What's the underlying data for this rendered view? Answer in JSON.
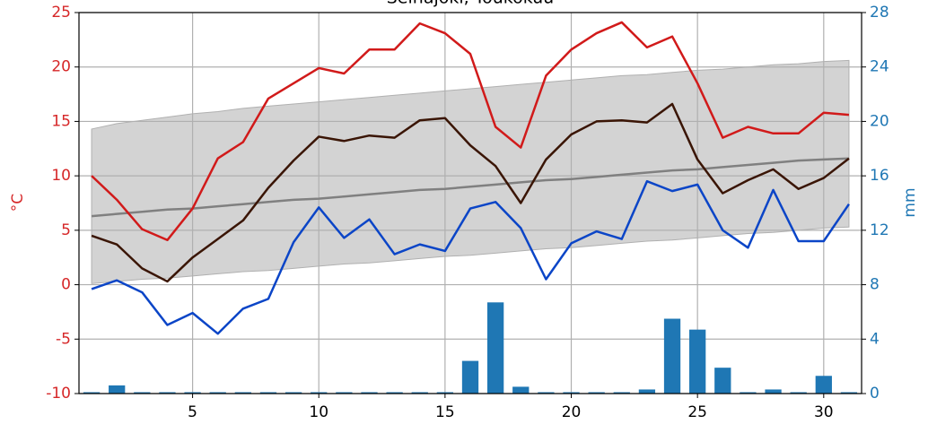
{
  "chart_data": {
    "type": "line",
    "title": "Seinäjoki, Toukokuu",
    "ylabel": "°C",
    "y2label": "mm",
    "x": [
      1,
      2,
      3,
      4,
      5,
      6,
      7,
      8,
      9,
      10,
      11,
      12,
      13,
      14,
      15,
      16,
      17,
      18,
      19,
      20,
      21,
      22,
      23,
      24,
      25,
      26,
      27,
      28,
      29,
      30,
      31
    ],
    "xlim": [
      0.5,
      31.5
    ],
    "xticks": [
      5,
      10,
      15,
      20,
      25,
      30
    ],
    "ylim": [
      -10,
      25
    ],
    "yticks": [
      -10,
      -5,
      0,
      5,
      10,
      15,
      20,
      25
    ],
    "y2lim": [
      0,
      28
    ],
    "y2ticks": [
      0,
      4,
      8,
      12,
      16,
      20,
      24,
      28
    ],
    "grid": true,
    "band": {
      "color": "#d3d3d3",
      "lower": [
        0.1,
        0.3,
        0.5,
        0.6,
        0.8,
        1.0,
        1.2,
        1.3,
        1.5,
        1.7,
        1.9,
        2.0,
        2.2,
        2.4,
        2.6,
        2.7,
        2.9,
        3.1,
        3.3,
        3.4,
        3.6,
        3.8,
        4.0,
        4.1,
        4.3,
        4.5,
        4.7,
        4.8,
        5.0,
        5.2,
        5.3
      ],
      "upper": [
        14.3,
        14.8,
        15.1,
        15.4,
        15.7,
        15.9,
        16.2,
        16.4,
        16.6,
        16.8,
        17.0,
        17.2,
        17.4,
        17.6,
        17.8,
        18.0,
        18.2,
        18.4,
        18.6,
        18.8,
        19.0,
        19.2,
        19.3,
        19.5,
        19.7,
        19.8,
        20.0,
        20.2,
        20.3,
        20.5,
        20.6
      ]
    },
    "series": [
      {
        "type": "bar",
        "axis": "y2",
        "color": "#1f77b4",
        "values": [
          0.1,
          0.6,
          0.1,
          0.1,
          0.1,
          0.1,
          0.1,
          0.1,
          0.1,
          0.1,
          0.1,
          0.1,
          0.1,
          0.1,
          0.1,
          2.4,
          6.7,
          0.5,
          0.1,
          0.1,
          0.1,
          0.1,
          0.3,
          5.5,
          4.7,
          1.9,
          0.1,
          0.3,
          0.1,
          1.3,
          0.1
        ]
      },
      {
        "type": "line",
        "color": "#808080",
        "values": [
          6.3,
          6.5,
          6.7,
          6.9,
          7.0,
          7.2,
          7.4,
          7.6,
          7.8,
          7.9,
          8.1,
          8.3,
          8.5,
          8.7,
          8.8,
          9.0,
          9.2,
          9.4,
          9.6,
          9.7,
          9.9,
          10.1,
          10.3,
          10.5,
          10.6,
          10.8,
          11.0,
          11.2,
          11.4,
          11.5,
          11.6
        ]
      },
      {
        "type": "line",
        "color": "#d11a1a",
        "values": [
          10,
          7.8,
          5.1,
          4.1,
          7,
          11.6,
          13.1,
          17.1,
          18.5,
          19.9,
          19.4,
          21.6,
          21.6,
          24,
          23.1,
          21.2,
          14.5,
          12.6,
          19.2,
          21.6,
          23.1,
          24.1,
          21.8,
          22.8,
          18.5,
          13.5,
          14.5,
          13.9,
          13.9,
          15.8,
          15.6
        ]
      },
      {
        "type": "line",
        "color": "#3a1505",
        "values": [
          4.5,
          3.7,
          1.5,
          0.3,
          2.5,
          4.2,
          5.9,
          8.9,
          11.4,
          13.6,
          13.2,
          13.7,
          13.5,
          15.1,
          15.3,
          12.8,
          10.9,
          7.5,
          11.5,
          13.8,
          15.0,
          15.1,
          14.9,
          16.6,
          11.5,
          8.4,
          9.6,
          10.6,
          8.8,
          9.8,
          11.6
        ]
      },
      {
        "type": "line",
        "color": "#0b45c7",
        "values": [
          -0.4,
          0.4,
          -0.7,
          -3.7,
          -2.6,
          -4.5,
          -2.2,
          -1.3,
          3.9,
          7.1,
          4.3,
          6.0,
          2.8,
          3.7,
          3.1,
          7.0,
          7.6,
          5.2,
          0.5,
          3.8,
          4.9,
          4.2,
          9.5,
          8.6,
          9.2,
          5.0,
          3.4,
          8.7,
          4.0,
          4.0,
          7.4
        ]
      }
    ],
    "ycolor": "#d62728",
    "y2color": "#1f77b4"
  }
}
